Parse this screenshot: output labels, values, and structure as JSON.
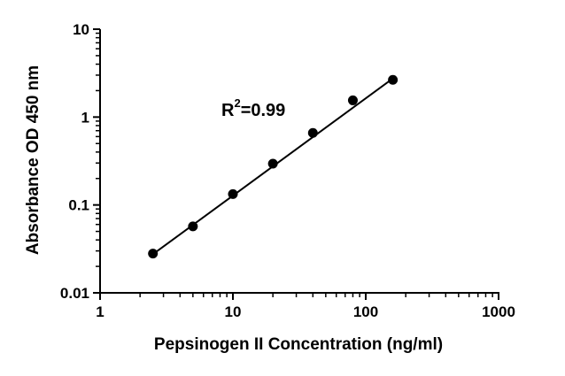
{
  "chart_data": {
    "type": "scatter",
    "title": "",
    "xlabel": "Pepsinogen II Concentration (ng/ml)",
    "ylabel": "Absorbance OD 450 nm",
    "xscale": "log",
    "yscale": "log",
    "xlim": [
      1,
      1000
    ],
    "ylim": [
      0.01,
      10
    ],
    "xticks": [
      "1",
      "10",
      "100",
      "1000"
    ],
    "yticks": [
      "0.01",
      "0.1",
      "1",
      "10"
    ],
    "grid": false,
    "legend": "none",
    "series": [
      {
        "x": [
          2.5,
          5,
          10,
          20,
          40,
          80,
          160
        ],
        "y": [
          0.028,
          0.057,
          0.133,
          0.295,
          0.66,
          1.55,
          2.65
        ],
        "marker": "circle",
        "color": "#000000"
      }
    ],
    "fit_line": {
      "x": [
        2.5,
        160
      ],
      "y": [
        0.0275,
        2.75
      ]
    },
    "annotation": {
      "base": "R",
      "sup": "2",
      "value": "=0.99"
    }
  }
}
